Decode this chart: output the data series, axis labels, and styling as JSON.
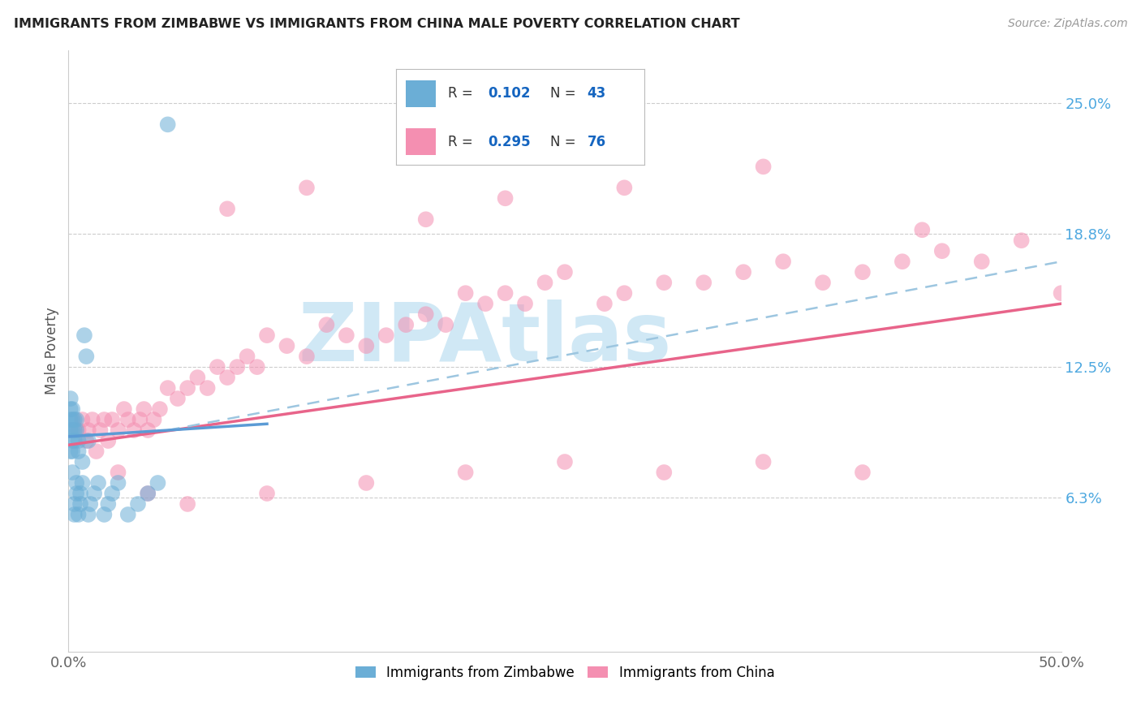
{
  "title": "IMMIGRANTS FROM ZIMBABWE VS IMMIGRANTS FROM CHINA MALE POVERTY CORRELATION CHART",
  "source": "Source: ZipAtlas.com",
  "ylabel": "Male Poverty",
  "ytick_vals": [
    0.063,
    0.125,
    0.188,
    0.25
  ],
  "ytick_labels_right": [
    "6.3%",
    "12.5%",
    "18.8%",
    "25.0%"
  ],
  "xlim": [
    0.0,
    0.5
  ],
  "ylim": [
    -0.01,
    0.275
  ],
  "color_zimbabwe": "#6baed6",
  "color_china": "#f48fb1",
  "color_r_value": "#1565c0",
  "color_zim_line": "#5b9bd5",
  "color_china_line": "#e8648a",
  "color_dashed_line": "#9dc6e0",
  "watermark": "ZIPAtlas",
  "watermark_color": "#d0e8f5",
  "background_color": "#ffffff",
  "zimbabwe_x": [
    0.001,
    0.001,
    0.001,
    0.001,
    0.001,
    0.002,
    0.002,
    0.002,
    0.002,
    0.002,
    0.002,
    0.003,
    0.003,
    0.003,
    0.003,
    0.003,
    0.004,
    0.004,
    0.004,
    0.004,
    0.005,
    0.005,
    0.005,
    0.006,
    0.006,
    0.007,
    0.007,
    0.008,
    0.009,
    0.01,
    0.01,
    0.011,
    0.013,
    0.015,
    0.018,
    0.02,
    0.022,
    0.025,
    0.03,
    0.035,
    0.04,
    0.045,
    0.05
  ],
  "zimbabwe_y": [
    0.095,
    0.1,
    0.105,
    0.11,
    0.085,
    0.09,
    0.095,
    0.1,
    0.105,
    0.085,
    0.075,
    0.09,
    0.095,
    0.1,
    0.055,
    0.06,
    0.095,
    0.1,
    0.065,
    0.07,
    0.085,
    0.09,
    0.055,
    0.06,
    0.065,
    0.07,
    0.08,
    0.14,
    0.13,
    0.09,
    0.055,
    0.06,
    0.065,
    0.07,
    0.055,
    0.06,
    0.065,
    0.07,
    0.055,
    0.06,
    0.065,
    0.07,
    0.24
  ],
  "china_x": [
    0.005,
    0.007,
    0.009,
    0.01,
    0.012,
    0.014,
    0.016,
    0.018,
    0.02,
    0.022,
    0.025,
    0.028,
    0.03,
    0.033,
    0.036,
    0.038,
    0.04,
    0.043,
    0.046,
    0.05,
    0.055,
    0.06,
    0.065,
    0.07,
    0.075,
    0.08,
    0.085,
    0.09,
    0.095,
    0.1,
    0.11,
    0.12,
    0.13,
    0.14,
    0.15,
    0.16,
    0.17,
    0.18,
    0.19,
    0.2,
    0.21,
    0.22,
    0.23,
    0.24,
    0.25,
    0.27,
    0.28,
    0.3,
    0.32,
    0.34,
    0.36,
    0.38,
    0.4,
    0.42,
    0.44,
    0.46,
    0.48,
    0.5,
    0.025,
    0.04,
    0.06,
    0.1,
    0.15,
    0.2,
    0.25,
    0.3,
    0.35,
    0.4,
    0.08,
    0.12,
    0.18,
    0.22,
    0.28,
    0.35,
    0.43
  ],
  "china_y": [
    0.095,
    0.1,
    0.09,
    0.095,
    0.1,
    0.085,
    0.095,
    0.1,
    0.09,
    0.1,
    0.095,
    0.105,
    0.1,
    0.095,
    0.1,
    0.105,
    0.095,
    0.1,
    0.105,
    0.115,
    0.11,
    0.115,
    0.12,
    0.115,
    0.125,
    0.12,
    0.125,
    0.13,
    0.125,
    0.14,
    0.135,
    0.13,
    0.145,
    0.14,
    0.135,
    0.14,
    0.145,
    0.15,
    0.145,
    0.16,
    0.155,
    0.16,
    0.155,
    0.165,
    0.17,
    0.155,
    0.16,
    0.165,
    0.165,
    0.17,
    0.175,
    0.165,
    0.17,
    0.175,
    0.18,
    0.175,
    0.185,
    0.16,
    0.075,
    0.065,
    0.06,
    0.065,
    0.07,
    0.075,
    0.08,
    0.075,
    0.08,
    0.075,
    0.2,
    0.21,
    0.195,
    0.205,
    0.21,
    0.22,
    0.19
  ],
  "zim_line_x0": 0.0,
  "zim_line_x1": 0.1,
  "zim_line_y0": 0.092,
  "zim_line_y1": 0.098,
  "china_line_x0": 0.0,
  "china_line_x1": 0.5,
  "china_line_y0": 0.088,
  "china_line_y1": 0.155,
  "dashed_line_x0": 0.05,
  "dashed_line_x1": 0.5,
  "dashed_line_y0": 0.095,
  "dashed_line_y1": 0.175
}
